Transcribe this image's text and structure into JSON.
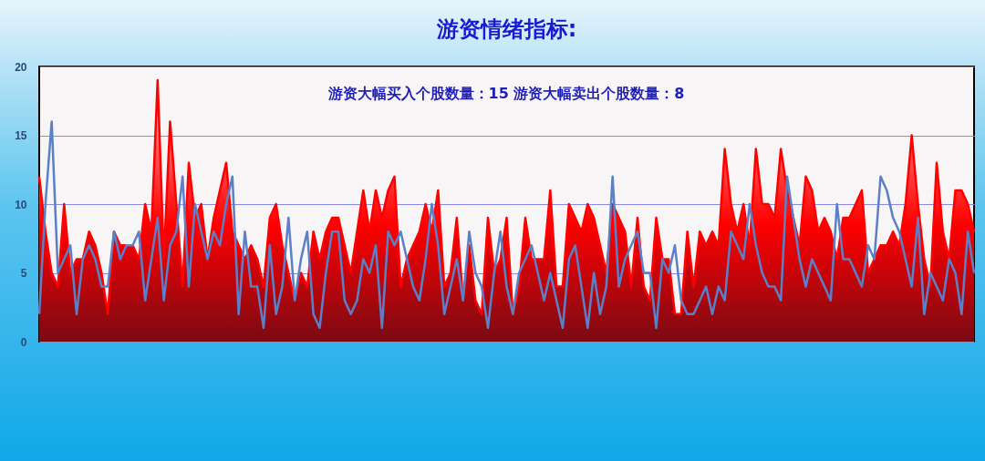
{
  "chart_data": {
    "type": "area",
    "title": "游资情绪指标:",
    "annotations": [
      "游资大幅买入个股数量：15    游资大幅卖出个股数量：8"
    ],
    "categories": [
      null,
      null,
      null,
      null,
      null,
      null,
      null,
      null,
      null,
      null,
      null,
      null,
      null,
      null,
      null,
      null,
      null,
      null,
      null,
      null,
      null,
      null,
      null,
      null,
      null,
      null,
      null,
      null,
      null,
      null,
      null,
      null,
      null,
      null,
      null,
      null,
      null,
      null,
      null,
      null,
      null,
      null,
      null,
      null,
      null,
      null,
      null,
      null,
      null,
      null,
      null,
      null,
      null,
      null,
      null,
      null,
      null,
      null,
      null,
      null,
      null,
      null,
      null,
      null,
      null,
      null,
      null,
      null,
      null,
      null,
      null,
      null,
      null,
      null,
      null,
      null,
      null,
      null,
      null,
      null,
      null,
      null,
      null,
      null,
      null,
      null,
      null,
      null,
      null,
      null,
      null,
      null,
      null,
      null,
      null,
      null,
      null,
      null,
      null,
      null,
      null,
      null,
      null,
      null,
      null,
      null,
      null,
      null,
      null,
      null,
      null,
      null,
      null,
      null,
      null,
      null,
      null,
      null,
      null,
      null,
      null,
      null,
      null,
      null,
      null,
      null,
      null,
      null,
      null,
      null,
      null,
      null,
      null,
      null,
      null,
      null,
      null,
      null,
      null,
      null,
      null,
      null,
      null,
      null,
      null,
      null,
      null,
      null,
      null,
      null,
      null
    ],
    "series": [
      {
        "color": "#ff0000",
        "values": [
          12,
          8,
          5,
          4,
          10,
          5,
          6,
          6,
          8,
          7,
          5,
          2,
          8,
          7,
          7,
          7,
          6,
          10,
          8,
          19,
          6,
          16,
          10,
          4,
          13,
          9,
          10,
          6,
          9,
          11,
          13,
          8,
          7,
          6,
          7,
          6,
          4,
          9,
          10,
          7,
          5,
          3,
          5,
          4,
          8,
          6,
          8,
          9,
          9,
          7,
          5,
          8,
          11,
          8,
          11,
          9,
          11,
          12,
          4,
          6,
          7,
          8,
          10,
          8,
          11,
          4,
          5,
          9,
          3,
          7,
          3,
          2,
          9,
          5,
          6,
          9,
          2,
          4,
          9,
          6,
          6,
          6,
          11,
          4,
          4,
          10,
          9,
          8,
          10,
          9,
          7,
          5,
          10,
          9,
          8,
          4,
          9,
          4,
          3,
          9,
          6,
          6,
          2,
          2,
          8,
          4,
          8,
          7,
          8,
          7,
          14,
          10,
          8,
          10,
          7,
          14,
          10,
          10,
          9,
          14,
          11,
          9,
          7,
          12,
          11,
          8,
          9,
          8,
          6,
          9,
          9,
          10,
          11,
          5,
          6,
          7,
          7,
          8,
          7,
          10,
          15,
          10,
          6,
          4,
          13,
          8,
          6,
          11,
          11,
          10,
          8
        ]
      },
      {
        "type": "line",
        "color": "#5b80c8",
        "values": [
          2,
          10,
          16,
          5,
          6,
          7,
          2,
          6,
          7,
          6,
          4,
          4,
          8,
          6,
          7,
          7,
          8,
          3,
          6,
          9,
          3,
          7,
          8,
          12,
          4,
          10,
          8,
          6,
          8,
          7,
          10,
          12,
          2,
          8,
          4,
          4,
          1,
          7,
          2,
          4,
          9,
          3,
          6,
          8,
          2,
          1,
          5,
          8,
          8,
          3,
          2,
          3,
          6,
          5,
          7,
          1,
          8,
          7,
          8,
          6,
          4,
          3,
          6,
          10,
          7,
          2,
          4,
          6,
          3,
          8,
          5,
          4,
          1,
          5,
          8,
          4,
          2,
          5,
          6,
          7,
          5,
          3,
          5,
          3,
          1,
          6,
          7,
          4,
          1,
          5,
          2,
          4,
          12,
          4,
          6,
          7,
          8,
          5,
          5,
          1,
          6,
          5,
          7,
          3,
          2,
          2,
          3,
          4,
          2,
          4,
          3,
          8,
          7,
          6,
          10,
          7,
          5,
          4,
          4,
          3,
          12,
          9,
          6,
          4,
          6,
          5,
          4,
          3,
          10,
          6,
          6,
          5,
          4,
          7,
          6,
          12,
          11,
          9,
          8,
          6,
          4,
          9,
          2,
          5,
          4,
          3,
          6,
          5,
          2,
          8,
          5
        ]
      }
    ],
    "ylim": [
      0,
      20
    ],
    "yticks": [
      0,
      5,
      10,
      15,
      20
    ],
    "grid": "y",
    "tick_labels": "y",
    "marker": "none",
    "line_style": "solid"
  }
}
